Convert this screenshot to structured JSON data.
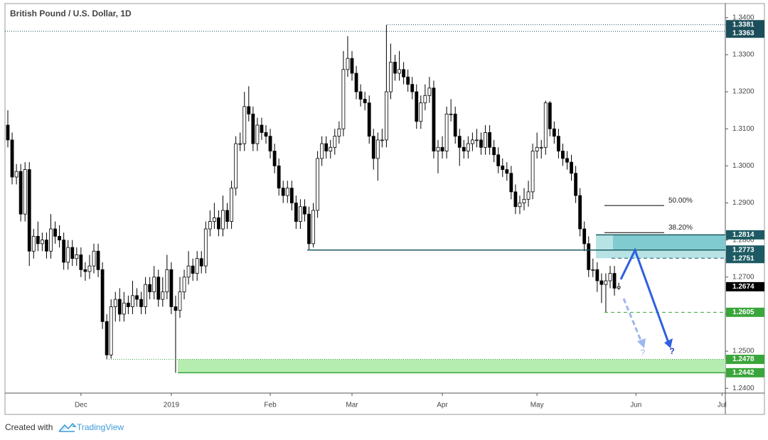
{
  "chart_data": {
    "type": "candlestick",
    "title": "British Pound / U.S. Dollar, 1D",
    "categories": [
      null,
      null,
      null,
      null,
      null,
      null,
      null,
      null,
      null,
      null,
      null,
      null,
      null,
      null,
      null,
      null,
      null,
      "Dec",
      null,
      null,
      null,
      null,
      null,
      null,
      null,
      null,
      null,
      null,
      null,
      null,
      null,
      null,
      null,
      null,
      null,
      null,
      null,
      null,
      "2019",
      null,
      null,
      null,
      null,
      null,
      null,
      null,
      null,
      null,
      null,
      null,
      null,
      null,
      null,
      null,
      null,
      null,
      null,
      null,
      null,
      null,
      null,
      "Feb",
      null,
      null,
      null,
      null,
      null,
      null,
      null,
      null,
      null,
      null,
      null,
      null,
      null,
      null,
      null,
      null,
      null,
      null,
      "Mar",
      null,
      null,
      null,
      null,
      null,
      null,
      null,
      null,
      null,
      null,
      null,
      null,
      null,
      null,
      null,
      null,
      null,
      null,
      null,
      null,
      "Apr",
      null,
      null,
      null,
      null,
      null,
      null,
      null,
      null,
      null,
      null,
      null,
      null,
      null,
      null,
      null,
      null,
      null,
      null,
      null,
      null,
      null,
      "May",
      null,
      null,
      null,
      null,
      null,
      null,
      null,
      null,
      null,
      null,
      null,
      null,
      null,
      null,
      null,
      null,
      null,
      null,
      null,
      null,
      null,
      null,
      "Jun",
      null,
      null,
      null,
      null,
      null,
      null,
      null,
      null,
      null,
      null,
      null,
      null,
      null,
      null,
      null,
      null,
      null,
      null,
      null,
      "Jul"
    ],
    "open": [
      1.311,
      1.307,
      1.297,
      1.2985,
      1.287,
      1.299,
      1.277,
      1.281,
      1.279,
      1.28,
      1.277,
      1.283,
      1.281,
      1.28,
      1.274,
      1.278,
      1.275,
      1.276,
      1.272,
      1.2715,
      1.273,
      1.277,
      1.272,
      1.258,
      1.249,
      1.262,
      1.264,
      1.26,
      1.263,
      1.262,
      1.265,
      1.264,
      1.262,
      1.268,
      1.266,
      1.27,
      1.264,
      1.266,
      1.272,
      1.262,
      1.261,
      1.266,
      1.27,
      1.273,
      1.271,
      1.275,
      1.273,
      1.283,
      1.285,
      1.286,
      1.283,
      1.288,
      1.285,
      1.294,
      1.306,
      1.306,
      1.316,
      1.314,
      1.306,
      1.311,
      1.309,
      1.308,
      1.304,
      1.3,
      1.294,
      1.292,
      1.294,
      1.29,
      1.285,
      1.289,
      1.287,
      1.279,
      1.288,
      1.302,
      1.306,
      1.304,
      1.305,
      1.308,
      1.31,
      1.326,
      1.329,
      1.325,
      1.32,
      1.318,
      1.317,
      1.308,
      1.302,
      1.307,
      1.307,
      1.32,
      1.328,
      1.325,
      1.326,
      1.324,
      1.322,
      1.32,
      1.312,
      1.317,
      1.319,
      1.321,
      1.304,
      1.305,
      1.304,
      1.314,
      1.314,
      1.308,
      1.305,
      1.304,
      1.306,
      1.307,
      1.307,
      1.305,
      1.309,
      1.305,
      1.303,
      1.3,
      1.299,
      1.298,
      1.293,
      1.289,
      1.29,
      1.291,
      1.293,
      1.304,
      1.305,
      1.305,
      1.317,
      1.31,
      1.308,
      1.304,
      1.302,
      1.301,
      1.298,
      1.292,
      1.283,
      1.279,
      1.272,
      1.272,
      1.269,
      1.268,
      1.269,
      1.271,
      1.267,
      null,
      null,
      null,
      null,
      null,
      null,
      null,
      null,
      null,
      null,
      null,
      null,
      null,
      null,
      null,
      null,
      null,
      null,
      null,
      null,
      null,
      null,
      null,
      null
    ],
    "high": [
      1.315,
      1.309,
      1.3005,
      1.3005,
      1.301,
      1.301,
      1.283,
      1.285,
      1.282,
      1.282,
      1.287,
      1.285,
      1.284,
      1.282,
      1.28,
      1.28,
      1.278,
      1.278,
      1.274,
      1.276,
      1.279,
      1.279,
      1.274,
      1.26,
      1.264,
      1.266,
      1.267,
      1.266,
      1.265,
      1.269,
      1.267,
      1.266,
      1.27,
      1.27,
      1.273,
      1.272,
      1.27,
      1.276,
      1.274,
      1.265,
      1.27,
      1.272,
      1.277,
      1.275,
      1.277,
      1.277,
      1.285,
      1.288,
      1.29,
      1.288,
      1.292,
      1.29,
      1.296,
      1.308,
      1.309,
      1.32,
      1.3215,
      1.316,
      1.313,
      1.313,
      1.311,
      1.31,
      1.306,
      1.302,
      1.296,
      1.296,
      1.296,
      1.292,
      1.291,
      1.291,
      1.289,
      1.29,
      1.304,
      1.308,
      1.308,
      1.307,
      1.31,
      1.312,
      1.331,
      1.335,
      1.331,
      1.327,
      1.322,
      1.32,
      1.319,
      1.31,
      1.309,
      1.31,
      1.3381,
      1.333,
      1.33,
      1.331,
      1.328,
      1.326,
      1.324,
      1.322,
      1.319,
      1.322,
      1.324,
      1.323,
      1.307,
      1.308,
      1.316,
      1.318,
      1.316,
      1.31,
      1.307,
      1.308,
      1.309,
      1.31,
      1.309,
      1.311,
      1.311,
      1.307,
      1.305,
      1.302,
      1.301,
      1.3,
      1.295,
      1.292,
      1.294,
      1.296,
      1.306,
      1.309,
      1.307,
      1.3176,
      1.3175,
      1.312,
      1.31,
      1.306,
      1.304,
      1.303,
      1.3,
      1.294,
      1.285,
      1.281,
      1.275,
      1.274,
      1.271,
      1.271,
      1.273,
      1.273,
      1.2685,
      null,
      null,
      null,
      null,
      null,
      null,
      null,
      null,
      null,
      null,
      null,
      null,
      null,
      null,
      null,
      null,
      null,
      null,
      null,
      null,
      null,
      null,
      null,
      null
    ],
    "low": [
      1.305,
      1.295,
      1.295,
      1.285,
      1.285,
      1.273,
      1.275,
      1.277,
      1.277,
      1.275,
      1.275,
      1.279,
      1.278,
      1.272,
      1.272,
      1.273,
      1.273,
      1.27,
      1.269,
      1.2695,
      1.271,
      1.27,
      1.256,
      1.2478,
      1.248,
      1.258,
      1.258,
      1.258,
      1.26,
      1.26,
      1.262,
      1.26,
      1.26,
      1.264,
      1.264,
      1.262,
      1.262,
      1.264,
      1.26,
      1.2442,
      1.259,
      1.264,
      1.268,
      1.269,
      1.269,
      1.271,
      1.271,
      1.281,
      1.283,
      1.281,
      1.281,
      1.283,
      1.283,
      1.292,
      1.304,
      1.304,
      1.312,
      1.304,
      1.304,
      1.307,
      1.306,
      1.302,
      1.298,
      1.292,
      1.29,
      1.29,
      1.288,
      1.283,
      1.283,
      1.285,
      1.2773,
      1.278,
      1.286,
      1.3,
      1.302,
      1.302,
      1.303,
      1.306,
      1.308,
      1.324,
      1.323,
      1.318,
      1.316,
      1.315,
      1.306,
      1.299,
      1.296,
      1.305,
      1.305,
      1.318,
      1.323,
      1.323,
      1.322,
      1.32,
      1.318,
      1.31,
      1.31,
      1.315,
      1.317,
      1.302,
      1.298,
      1.302,
      1.302,
      1.312,
      1.306,
      1.3,
      1.302,
      1.302,
      1.304,
      1.305,
      1.303,
      1.303,
      1.303,
      1.301,
      1.298,
      1.297,
      1.296,
      1.291,
      1.287,
      1.287,
      1.288,
      1.289,
      1.291,
      1.302,
      1.302,
      1.303,
      1.308,
      1.306,
      1.302,
      1.3,
      1.299,
      1.296,
      1.29,
      1.281,
      1.277,
      1.27,
      1.27,
      1.266,
      1.263,
      1.2605,
      1.267,
      1.265,
      1.2665,
      null,
      null,
      null,
      null,
      null,
      null,
      null,
      null,
      null,
      null,
      null,
      null,
      null,
      null,
      null,
      null,
      null,
      null,
      null,
      null,
      null,
      null,
      null,
      null
    ],
    "close": [
      1.307,
      1.297,
      1.2985,
      1.287,
      1.299,
      1.277,
      1.281,
      1.279,
      1.28,
      1.277,
      1.283,
      1.281,
      1.28,
      1.274,
      1.278,
      1.275,
      1.276,
      1.272,
      1.2715,
      1.273,
      1.277,
      1.272,
      1.258,
      1.249,
      1.262,
      1.264,
      1.26,
      1.263,
      1.262,
      1.265,
      1.264,
      1.262,
      1.268,
      1.266,
      1.27,
      1.264,
      1.266,
      1.272,
      1.262,
      1.261,
      1.266,
      1.27,
      1.273,
      1.271,
      1.275,
      1.273,
      1.283,
      1.285,
      1.286,
      1.283,
      1.288,
      1.285,
      1.294,
      1.306,
      1.306,
      1.316,
      1.314,
      1.306,
      1.311,
      1.309,
      1.308,
      1.304,
      1.3,
      1.294,
      1.292,
      1.294,
      1.29,
      1.285,
      1.289,
      1.287,
      1.279,
      1.288,
      1.302,
      1.306,
      1.304,
      1.305,
      1.308,
      1.31,
      1.326,
      1.329,
      1.325,
      1.32,
      1.318,
      1.317,
      1.308,
      1.302,
      1.307,
      1.307,
      1.32,
      1.328,
      1.325,
      1.326,
      1.324,
      1.322,
      1.32,
      1.312,
      1.317,
      1.319,
      1.321,
      1.304,
      1.305,
      1.304,
      1.314,
      1.314,
      1.308,
      1.305,
      1.304,
      1.306,
      1.307,
      1.307,
      1.305,
      1.309,
      1.305,
      1.303,
      1.3,
      1.299,
      1.298,
      1.293,
      1.289,
      1.29,
      1.291,
      1.293,
      1.304,
      1.305,
      1.305,
      1.317,
      1.31,
      1.308,
      1.304,
      1.302,
      1.301,
      1.298,
      1.292,
      1.283,
      1.279,
      1.272,
      1.272,
      1.269,
      1.268,
      1.269,
      1.271,
      1.267,
      1.2674,
      null,
      null,
      null,
      null,
      null,
      null,
      null,
      null,
      null,
      null,
      null,
      null,
      null,
      null,
      null,
      null,
      null,
      null,
      null,
      null,
      null,
      null,
      null,
      null
    ],
    "up_color": "#ffffff",
    "down_color": "#000000",
    "ylim": [
      1.2387,
      1.3438
    ],
    "yticks": [
      {
        "value": 1.24,
        "label": "1.2400"
      },
      {
        "value": 1.25,
        "label": "1.2500"
      },
      {
        "value": 1.26,
        "label": "1.2600"
      },
      {
        "value": 1.27,
        "label": "1.2700"
      },
      {
        "value": 1.28,
        "label": "1.2800"
      },
      {
        "value": 1.29,
        "label": "1.2900"
      },
      {
        "value": 1.3,
        "label": "1.3000"
      },
      {
        "value": 1.31,
        "label": "1.3100"
      },
      {
        "value": 1.32,
        "label": "1.3200"
      },
      {
        "value": 1.33,
        "label": "1.3300"
      },
      {
        "value": 1.34,
        "label": "1.3400"
      }
    ],
    "grid": false,
    "levels": [
      {
        "value": 1.3381,
        "color": "#1b4e5a",
        "style": "dotted"
      },
      {
        "value": 1.3363,
        "color": "#1b4e5a",
        "style": "dotted"
      },
      {
        "value": 1.2814,
        "color": "#1d5a63",
        "style": "solid"
      },
      {
        "value": 1.2773,
        "color": "#1d5a63",
        "style": "solid"
      },
      {
        "value": 1.2751,
        "color": "#1d5a63",
        "style": "dashed"
      },
      {
        "value": 1.2674,
        "color": "#000000",
        "style": "none"
      },
      {
        "value": 1.2605,
        "color": "#3aa53a",
        "style": "dashed"
      },
      {
        "value": 1.2478,
        "color": "#3aa53a",
        "style": "dotted"
      },
      {
        "value": 1.2442,
        "color": "#3aa53a",
        "style": "solid"
      }
    ],
    "fib_levels": [
      {
        "value": 50,
        "label": "50.00%",
        "price": 1.2893
      },
      {
        "value": 38.2,
        "label": "38.20%",
        "price": 1.282
      }
    ],
    "annotations": [
      "?",
      "?"
    ]
  },
  "footer": {
    "prefix": "Created with",
    "brand": "TradingView"
  }
}
